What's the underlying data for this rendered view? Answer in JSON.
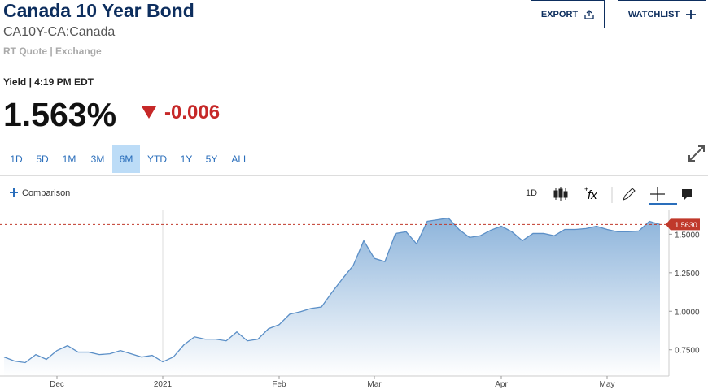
{
  "header": {
    "title": "Canada 10 Year Bond",
    "symbol": "CA10Y-CA:Canada",
    "source": "RT Quote | Exchange"
  },
  "buttons": [
    "EXPORT",
    "WATCHLIST"
  ],
  "quote": {
    "time": "Yield | 4:19 PM EDT",
    "value": "1.563%",
    "change": "-0.006"
  },
  "tabs": {
    "items": [
      "1D",
      "5D",
      "1M",
      "3M",
      "6M",
      "YTD",
      "1Y",
      "5Y",
      "ALL"
    ],
    "active": "6M"
  },
  "toolbar": {
    "comparison": "Comparison",
    "interval": "1D"
  },
  "chart_data": {
    "type": "area",
    "color": "#5b8fc7",
    "categories": [
      null,
      null,
      null,
      null,
      null,
      "Dec",
      null,
      null,
      null,
      null,
      null,
      null,
      null,
      null,
      null,
      "2021",
      null,
      null,
      null,
      null,
      null,
      null,
      null,
      null,
      null,
      null,
      "Feb",
      null,
      null,
      null,
      null,
      null,
      null,
      null,
      null,
      "Mar",
      null,
      null,
      null,
      null,
      null,
      null,
      null,
      null,
      null,
      null,
      null,
      "Apr",
      null,
      null,
      null,
      null,
      null,
      null,
      null,
      null,
      null,
      "May",
      null,
      null,
      null,
      null,
      null
    ],
    "values": [
      0.703,
      0.677,
      0.667,
      0.719,
      0.688,
      0.745,
      0.777,
      0.735,
      0.735,
      0.719,
      0.724,
      0.745,
      0.724,
      0.703,
      0.714,
      0.672,
      0.703,
      0.782,
      0.834,
      0.819,
      0.819,
      0.808,
      0.866,
      0.808,
      0.819,
      0.887,
      0.913,
      0.981,
      0.997,
      1.018,
      1.028,
      1.123,
      1.212,
      1.296,
      1.458,
      1.343,
      1.322,
      1.505,
      1.516,
      1.437,
      1.584,
      1.594,
      1.605,
      1.531,
      1.479,
      1.49,
      1.526,
      1.552,
      1.516,
      1.458,
      1.505,
      1.505,
      1.49,
      1.531,
      1.531,
      1.537,
      1.552,
      1.531,
      1.516,
      1.516,
      1.521,
      1.584,
      1.563
    ],
    "ylim": [
      0.58,
      1.66
    ],
    "yticks": [
      {
        "value": 0.75,
        "label": "0.7500"
      },
      {
        "value": 1.0,
        "label": "1.0000"
      },
      {
        "value": 1.25,
        "label": "1.2500"
      },
      {
        "value": 1.5,
        "label": "1.5000"
      }
    ],
    "reference_line": {
      "value": 1.563,
      "label": "1.5630",
      "color": "#c0392b"
    },
    "grid": false
  }
}
